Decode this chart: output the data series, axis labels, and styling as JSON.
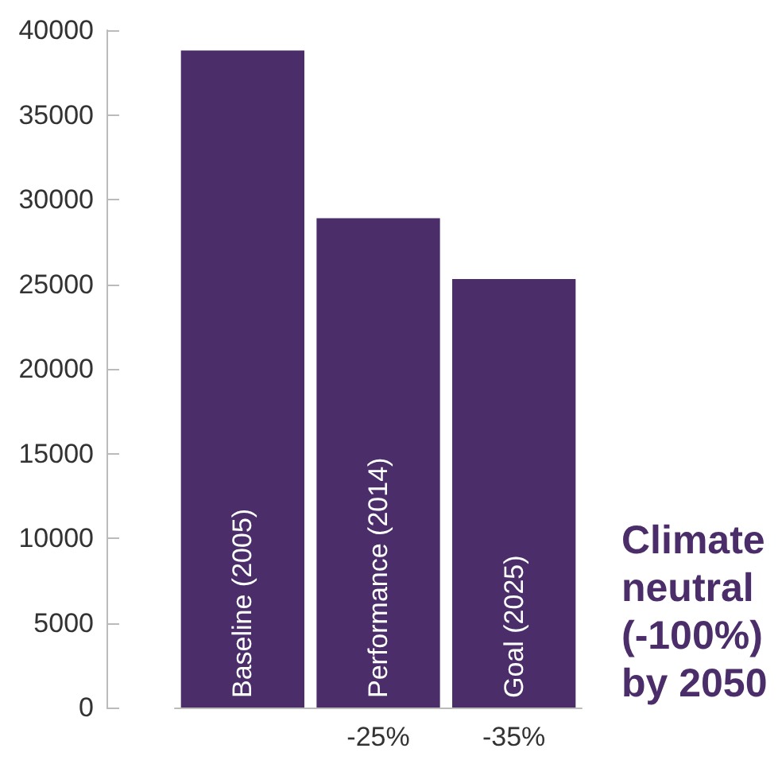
{
  "chart_data": {
    "type": "bar",
    "categories": [
      "Baseline (2005)",
      "Performance (2014)",
      "Goal (2025)"
    ],
    "values": [
      38800,
      28900,
      25300
    ],
    "color": "#4b2d6a",
    "ylim": [
      0,
      40000
    ],
    "yticks": [
      0,
      5000,
      10000,
      15000,
      20000,
      25000,
      30000,
      35000,
      40000
    ],
    "grid": false,
    "annotations": [
      "-25%",
      "-35%",
      "Climate neutral (-100%) by 2050"
    ]
  }
}
